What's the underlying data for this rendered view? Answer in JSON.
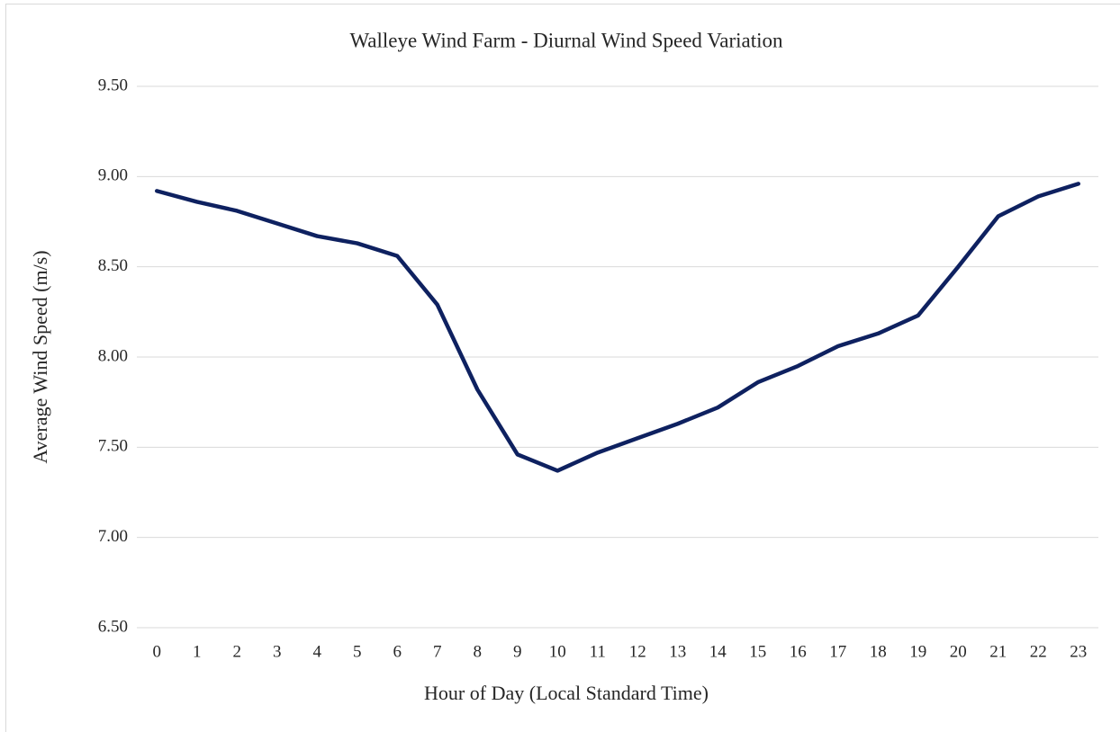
{
  "chart_data": {
    "type": "line",
    "title": "Walleye Wind Farm - Diurnal Wind Speed Variation",
    "xlabel": "Hour of Day (Local Standard Time)",
    "ylabel": "Average Wind Speed (m/s)",
    "categories": [
      "0",
      "1",
      "2",
      "3",
      "4",
      "5",
      "6",
      "7",
      "8",
      "9",
      "10",
      "11",
      "12",
      "13",
      "14",
      "15",
      "16",
      "17",
      "18",
      "19",
      "20",
      "21",
      "22",
      "23"
    ],
    "series": [
      {
        "name": "Average Wind Speed",
        "color": "#0e2160",
        "values": [
          8.92,
          8.86,
          8.81,
          8.74,
          8.67,
          8.63,
          8.56,
          8.29,
          7.82,
          7.46,
          7.37,
          7.47,
          7.55,
          7.63,
          7.72,
          7.86,
          7.95,
          8.06,
          8.13,
          8.23,
          8.5,
          8.78,
          8.89,
          8.96
        ]
      }
    ],
    "ylim": [
      6.5,
      9.5
    ],
    "yticks": [
      {
        "value": 6.5,
        "label": "6.50"
      },
      {
        "value": 7,
        "label": "7.00"
      },
      {
        "value": 7.5,
        "label": "7.50"
      },
      {
        "value": 8,
        "label": "8.00"
      },
      {
        "value": 8.5,
        "label": "8.50"
      },
      {
        "value": 9,
        "label": "9.00"
      },
      {
        "value": 9.5,
        "label": "9.50"
      }
    ],
    "grid": true
  }
}
